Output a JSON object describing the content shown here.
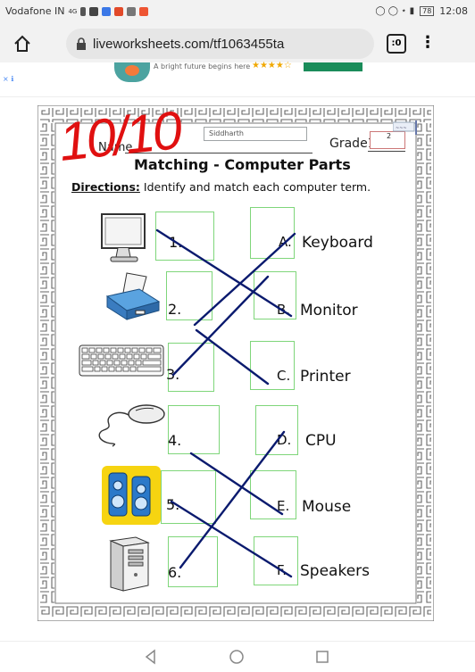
{
  "status_bar": {
    "carrier": "Vodafone IN",
    "network": "4G",
    "battery": "78",
    "time": "12:08"
  },
  "browser": {
    "url": "liveworksheets.com/tf1063455ta",
    "tabs_label": ":0"
  },
  "ad": {
    "tag": "× ℹ",
    "text": "A bright future begins here",
    "stars": "★★★★☆"
  },
  "worksheet": {
    "score": "10/10",
    "name_label": "Name",
    "name_value": "Siddharth",
    "grade_label": "Grade1",
    "grade_value": "2",
    "title": "Matching - Computer Parts",
    "directions_label": "Directions:",
    "directions_text": " Identify and match each computer term.",
    "numbers": [
      "1.",
      "2.",
      "3.",
      "4.",
      "5.",
      "6."
    ],
    "letters": [
      "A.",
      "B.",
      "C.",
      "D.",
      "E.",
      "F."
    ],
    "terms": [
      "Keyboard",
      "Monitor",
      "Printer",
      "CPU",
      "Mouse",
      "Speakers"
    ],
    "images": [
      "monitor",
      "printer",
      "keyboard",
      "mouse",
      "speakers",
      "cpu tower"
    ]
  },
  "colors": {
    "score_red": "#e01010",
    "box_green": "#7fd67a",
    "line_navy": "#0a1a6e"
  },
  "nav": {
    "back": "back-icon",
    "home": "home-icon",
    "recents": "recents-icon"
  }
}
